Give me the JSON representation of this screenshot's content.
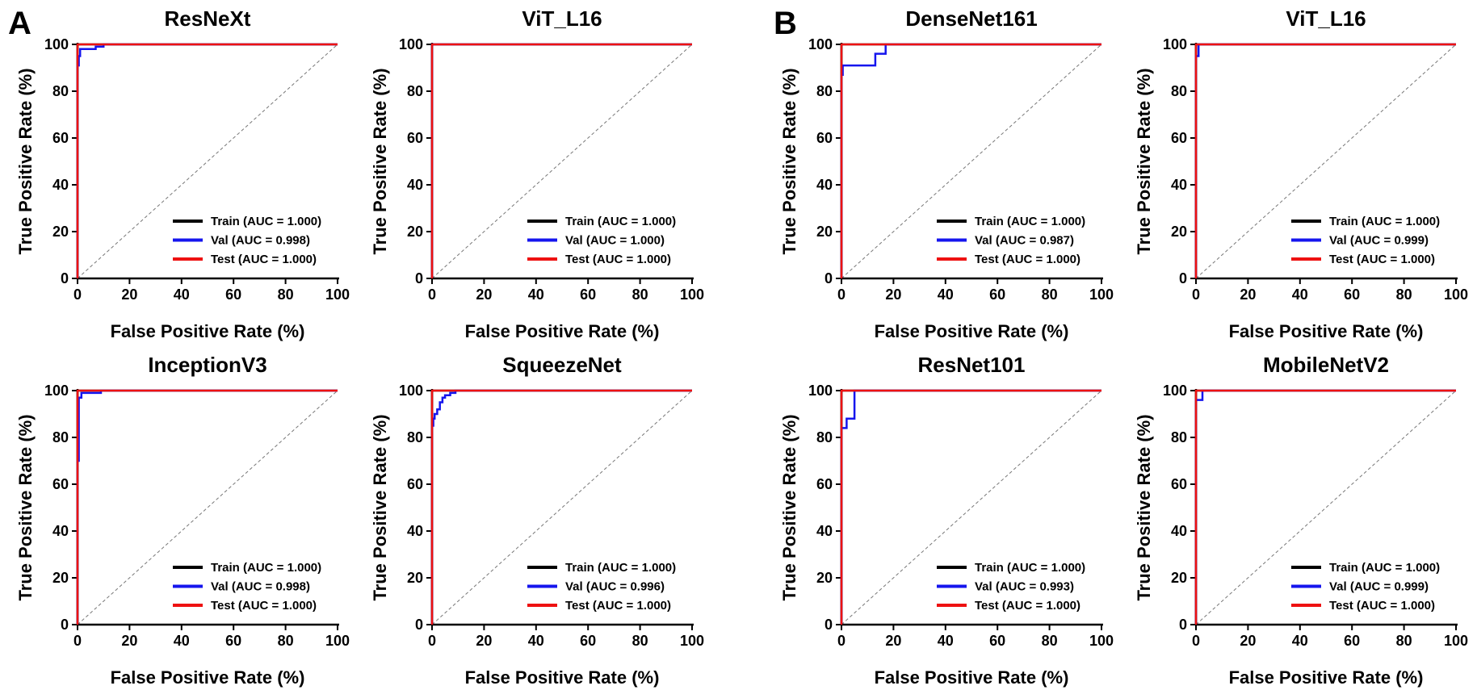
{
  "figure": {
    "panel_labels": [
      "A",
      "B"
    ],
    "colors": {
      "train": "#000000",
      "val": "#1515ee",
      "test": "#ee1111",
      "diagonal": "#777777",
      "axis": "#000000"
    }
  },
  "chart_data": [
    {
      "type": "line",
      "panel": "A",
      "title": "ResNeXt",
      "xlabel": "False Positive Rate (%)",
      "ylabel": "True Positive Rate (%)",
      "xlim": [
        0,
        100
      ],
      "ylim": [
        0,
        100
      ],
      "xticks": [
        "0",
        "20",
        "40",
        "60",
        "80",
        "100"
      ],
      "yticks": [
        "0",
        "20",
        "40",
        "60",
        "80",
        "100"
      ],
      "diagonal": true,
      "legend_position": "bottom-right",
      "series": [
        {
          "name": "Train (AUC = 1.000)",
          "color": "#000000",
          "points": [
            [
              0,
              0
            ],
            [
              0,
              100
            ],
            [
              100,
              100
            ]
          ]
        },
        {
          "name": "Val (AUC = 0.998)",
          "color": "#1515ee",
          "points": [
            [
              0,
              0
            ],
            [
              0,
              91
            ],
            [
              0.5,
              91
            ],
            [
              0.5,
              95
            ],
            [
              1,
              95
            ],
            [
              1,
              98
            ],
            [
              7,
              98
            ],
            [
              7,
              99
            ],
            [
              10,
              99
            ],
            [
              10,
              100
            ],
            [
              100,
              100
            ]
          ]
        },
        {
          "name": "Test (AUC = 1.000)",
          "color": "#ee1111",
          "points": [
            [
              0,
              0
            ],
            [
              0,
              100
            ],
            [
              100,
              100
            ]
          ]
        }
      ]
    },
    {
      "type": "line",
      "panel": "A",
      "title": "ViT_L16",
      "xlabel": "False Positive Rate (%)",
      "ylabel": "True Positive Rate (%)",
      "xlim": [
        0,
        100
      ],
      "ylim": [
        0,
        100
      ],
      "xticks": [
        "0",
        "20",
        "40",
        "60",
        "80",
        "100"
      ],
      "yticks": [
        "0",
        "20",
        "40",
        "60",
        "80",
        "100"
      ],
      "diagonal": true,
      "legend_position": "bottom-right",
      "series": [
        {
          "name": "Train (AUC = 1.000)",
          "color": "#000000",
          "points": [
            [
              0,
              0
            ],
            [
              0,
              100
            ],
            [
              100,
              100
            ]
          ]
        },
        {
          "name": "Val (AUC = 1.000)",
          "color": "#1515ee",
          "points": [
            [
              0,
              0
            ],
            [
              0,
              100
            ],
            [
              100,
              100
            ]
          ]
        },
        {
          "name": "Test (AUC = 1.000)",
          "color": "#ee1111",
          "points": [
            [
              0,
              0
            ],
            [
              0,
              100
            ],
            [
              100,
              100
            ]
          ]
        }
      ]
    },
    {
      "type": "line",
      "panel": "B",
      "title": "DenseNet161",
      "xlabel": "False Positive Rate (%)",
      "ylabel": "True Positive Rate (%)",
      "xlim": [
        0,
        100
      ],
      "ylim": [
        0,
        100
      ],
      "xticks": [
        "0",
        "20",
        "40",
        "60",
        "80",
        "100"
      ],
      "yticks": [
        "0",
        "20",
        "40",
        "60",
        "80",
        "100"
      ],
      "diagonal": true,
      "legend_position": "bottom-right",
      "series": [
        {
          "name": "Train (AUC = 1.000)",
          "color": "#000000",
          "points": [
            [
              0,
              0
            ],
            [
              0,
              100
            ],
            [
              100,
              100
            ]
          ]
        },
        {
          "name": "Val (AUC = 0.987)",
          "color": "#1515ee",
          "points": [
            [
              0,
              0
            ],
            [
              0,
              87
            ],
            [
              0.5,
              87
            ],
            [
              0.5,
              91
            ],
            [
              13,
              91
            ],
            [
              13,
              96
            ],
            [
              17,
              96
            ],
            [
              17,
              100
            ],
            [
              100,
              100
            ]
          ]
        },
        {
          "name": "Test (AUC = 1.000)",
          "color": "#ee1111",
          "points": [
            [
              0,
              0
            ],
            [
              0,
              100
            ],
            [
              100,
              100
            ]
          ]
        }
      ]
    },
    {
      "type": "line",
      "panel": "B",
      "title": "ViT_L16",
      "xlabel": "False Positive Rate (%)",
      "ylabel": "True Positive Rate (%)",
      "xlim": [
        0,
        100
      ],
      "ylim": [
        0,
        100
      ],
      "xticks": [
        "0",
        "20",
        "40",
        "60",
        "80",
        "100"
      ],
      "yticks": [
        "0",
        "20",
        "40",
        "60",
        "80",
        "100"
      ],
      "diagonal": true,
      "legend_position": "bottom-right",
      "series": [
        {
          "name": "Train (AUC = 1.000)",
          "color": "#000000",
          "points": [
            [
              0,
              0
            ],
            [
              0,
              100
            ],
            [
              100,
              100
            ]
          ]
        },
        {
          "name": "Val (AUC = 0.999)",
          "color": "#1515ee",
          "points": [
            [
              0,
              0
            ],
            [
              0,
              95
            ],
            [
              1,
              95
            ],
            [
              1,
              100
            ],
            [
              100,
              100
            ]
          ]
        },
        {
          "name": "Test (AUC = 1.000)",
          "color": "#ee1111",
          "points": [
            [
              0,
              0
            ],
            [
              0,
              100
            ],
            [
              100,
              100
            ]
          ]
        }
      ]
    },
    {
      "type": "line",
      "panel": "A",
      "title": "InceptionV3",
      "xlabel": "False Positive Rate (%)",
      "ylabel": "True Positive Rate (%)",
      "xlim": [
        0,
        100
      ],
      "ylim": [
        0,
        100
      ],
      "xticks": [
        "0",
        "20",
        "40",
        "60",
        "80",
        "100"
      ],
      "yticks": [
        "0",
        "20",
        "40",
        "60",
        "80",
        "100"
      ],
      "diagonal": true,
      "legend_position": "bottom-right",
      "series": [
        {
          "name": "Train (AUC = 1.000)",
          "color": "#000000",
          "points": [
            [
              0,
              0
            ],
            [
              0,
              100
            ],
            [
              100,
              100
            ]
          ]
        },
        {
          "name": "Val (AUC = 0.998)",
          "color": "#1515ee",
          "points": [
            [
              0,
              0
            ],
            [
              0,
              70
            ],
            [
              0.5,
              70
            ],
            [
              0.5,
              97
            ],
            [
              1.5,
              97
            ],
            [
              1.5,
              99
            ],
            [
              9,
              99
            ],
            [
              9,
              100
            ],
            [
              100,
              100
            ]
          ]
        },
        {
          "name": "Test (AUC = 1.000)",
          "color": "#ee1111",
          "points": [
            [
              0,
              0
            ],
            [
              0,
              100
            ],
            [
              100,
              100
            ]
          ]
        }
      ]
    },
    {
      "type": "line",
      "panel": "A",
      "title": "SqueezeNet",
      "xlabel": "False Positive Rate (%)",
      "ylabel": "True Positive Rate (%)",
      "xlim": [
        0,
        100
      ],
      "ylim": [
        0,
        100
      ],
      "xticks": [
        "0",
        "20",
        "40",
        "60",
        "80",
        "100"
      ],
      "yticks": [
        "0",
        "20",
        "40",
        "60",
        "80",
        "100"
      ],
      "diagonal": true,
      "legend_position": "bottom-right",
      "series": [
        {
          "name": "Train (AUC = 1.000)",
          "color": "#000000",
          "points": [
            [
              0,
              0
            ],
            [
              0,
              100
            ],
            [
              100,
              100
            ]
          ]
        },
        {
          "name": "Val (AUC = 0.996)",
          "color": "#1515ee",
          "points": [
            [
              0,
              0
            ],
            [
              0,
              85
            ],
            [
              0.5,
              85
            ],
            [
              0.5,
              88
            ],
            [
              1,
              88
            ],
            [
              1,
              90
            ],
            [
              2,
              90
            ],
            [
              2,
              92
            ],
            [
              3,
              92
            ],
            [
              3,
              95
            ],
            [
              4,
              95
            ],
            [
              4,
              97
            ],
            [
              5,
              97
            ],
            [
              5,
              98
            ],
            [
              7,
              98
            ],
            [
              7,
              99
            ],
            [
              9,
              99
            ],
            [
              9,
              100
            ],
            [
              100,
              100
            ]
          ]
        },
        {
          "name": "Test (AUC = 1.000)",
          "color": "#ee1111",
          "points": [
            [
              0,
              0
            ],
            [
              0,
              100
            ],
            [
              100,
              100
            ]
          ]
        }
      ]
    },
    {
      "type": "line",
      "panel": "B",
      "title": "ResNet101",
      "xlabel": "False Positive Rate (%)",
      "ylabel": "True Positive Rate (%)",
      "xlim": [
        0,
        100
      ],
      "ylim": [
        0,
        100
      ],
      "xticks": [
        "0",
        "20",
        "40",
        "60",
        "80",
        "100"
      ],
      "yticks": [
        "0",
        "20",
        "40",
        "60",
        "80",
        "100"
      ],
      "diagonal": true,
      "legend_position": "bottom-right",
      "series": [
        {
          "name": "Train (AUC = 1.000)",
          "color": "#000000",
          "points": [
            [
              0,
              0
            ],
            [
              0,
              100
            ],
            [
              100,
              100
            ]
          ]
        },
        {
          "name": "Val (AUC = 0.993)",
          "color": "#1515ee",
          "points": [
            [
              0,
              0
            ],
            [
              0,
              84
            ],
            [
              2,
              84
            ],
            [
              2,
              88
            ],
            [
              5,
              88
            ],
            [
              5,
              100
            ],
            [
              100,
              100
            ]
          ]
        },
        {
          "name": "Test (AUC = 1.000)",
          "color": "#ee1111",
          "points": [
            [
              0,
              0
            ],
            [
              0,
              100
            ],
            [
              100,
              100
            ]
          ]
        }
      ]
    },
    {
      "type": "line",
      "panel": "B",
      "title": "MobileNetV2",
      "xlabel": "False Positive Rate (%)",
      "ylabel": "True Positive Rate (%)",
      "xlim": [
        0,
        100
      ],
      "ylim": [
        0,
        100
      ],
      "xticks": [
        "0",
        "20",
        "40",
        "60",
        "80",
        "100"
      ],
      "yticks": [
        "0",
        "20",
        "40",
        "60",
        "80",
        "100"
      ],
      "diagonal": true,
      "legend_position": "bottom-right",
      "series": [
        {
          "name": "Train (AUC = 1.000)",
          "color": "#000000",
          "points": [
            [
              0,
              0
            ],
            [
              0,
              100
            ],
            [
              100,
              100
            ]
          ]
        },
        {
          "name": "Val (AUC = 0.999)",
          "color": "#1515ee",
          "points": [
            [
              0,
              0
            ],
            [
              0,
              96
            ],
            [
              2.5,
              96
            ],
            [
              2.5,
              100
            ],
            [
              100,
              100
            ]
          ]
        },
        {
          "name": "Test (AUC = 1.000)",
          "color": "#ee1111",
          "points": [
            [
              0,
              0
            ],
            [
              0,
              100
            ],
            [
              100,
              100
            ]
          ]
        }
      ]
    }
  ]
}
